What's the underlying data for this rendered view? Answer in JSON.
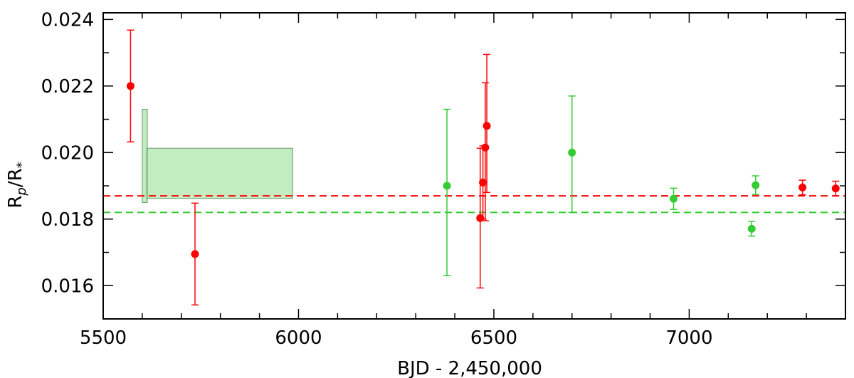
{
  "chart_data": {
    "type": "scatter",
    "xlabel": "BJD - 2,450,000",
    "ylabel_main": "R",
    "ylabel_sub1": "p",
    "ylabel_mid": "/R",
    "ylabel_sub2": "*",
    "xlim": [
      5500,
      7400
    ],
    "ylim": [
      0.015,
      0.0242
    ],
    "xticks": [
      5500,
      6000,
      6500,
      7000
    ],
    "xtick_labels": [
      "5500",
      "6000",
      "6500",
      "7000"
    ],
    "yticks": [
      0.016,
      0.018,
      0.02,
      0.022,
      0.024
    ],
    "ytick_labels": [
      "0.016",
      "0.018",
      "0.020",
      "0.022",
      "0.024"
    ],
    "grid": false,
    "colors": {
      "red": "#ff0000",
      "green": "#33cc33",
      "green_fill": "#a6e6a6"
    },
    "series": [
      {
        "color": "red",
        "points": [
          {
            "x": 5570,
            "y": 0.022,
            "yerr_low": 0.00168,
            "yerr_high": 0.00168
          },
          {
            "x": 5735,
            "y": 0.01695,
            "yerr_low": 0.00153,
            "yerr_high": 0.00153
          },
          {
            "x": 6465,
            "y": 0.01803,
            "yerr_low": 0.0021,
            "yerr_high": 0.0021
          },
          {
            "x": 6472,
            "y": 0.0191,
            "yerr_low": 0.0011,
            "yerr_high": 0.0011
          },
          {
            "x": 6478,
            "y": 0.02015,
            "yerr_low": 0.0022,
            "yerr_high": 0.00195
          },
          {
            "x": 6482,
            "y": 0.0208,
            "yerr_low": 0.002,
            "yerr_high": 0.00215
          },
          {
            "x": 7290,
            "y": 0.01895,
            "yerr_low": 0.00022,
            "yerr_high": 0.00022
          },
          {
            "x": 7375,
            "y": 0.01892,
            "yerr_low": 0.00022,
            "yerr_high": 0.00022
          }
        ]
      },
      {
        "color": "green",
        "points": [
          {
            "x": 6380,
            "y": 0.019,
            "yerr_low": 0.0027,
            "yerr_high": 0.0023
          },
          {
            "x": 6700,
            "y": 0.02,
            "yerr_low": 0.0018,
            "yerr_high": 0.0017
          },
          {
            "x": 6960,
            "y": 0.01861,
            "yerr_low": 0.00032,
            "yerr_high": 0.00032
          },
          {
            "x": 7160,
            "y": 0.01771,
            "yerr_low": 0.00022,
            "yerr_high": 0.00022
          },
          {
            "x": 7170,
            "y": 0.01902,
            "yerr_low": 0.00028,
            "yerr_high": 0.00028
          }
        ]
      }
    ],
    "shaded_regions": [
      {
        "x": [
          5610,
          5985
        ],
        "y": [
          0.01862,
          0.02013
        ]
      },
      {
        "x": [
          5600,
          5613
        ],
        "y": [
          0.0185,
          0.0213
        ]
      }
    ],
    "hlines": [
      {
        "y": 0.0187,
        "color": "red",
        "style": "dashed"
      },
      {
        "y": 0.0182,
        "color": "green",
        "style": "dashed"
      }
    ]
  }
}
